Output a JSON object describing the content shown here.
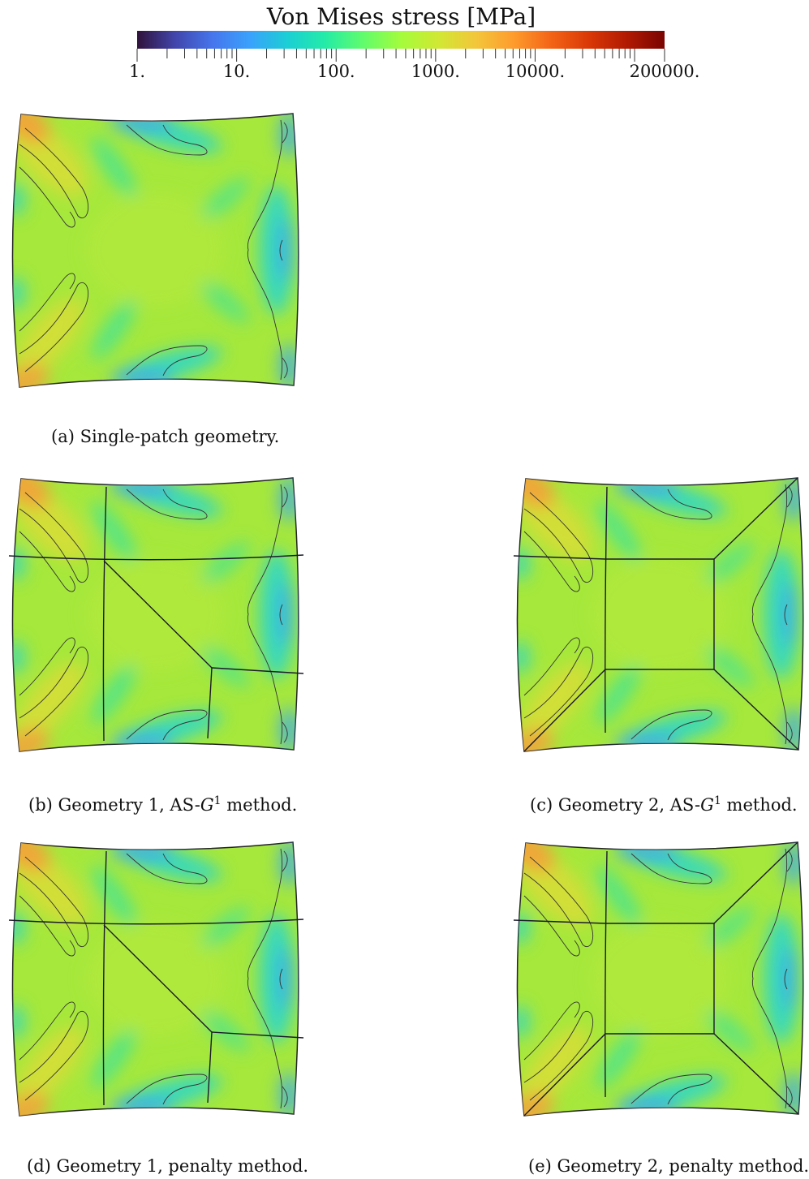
{
  "colorbar": {
    "title": "Von Mises stress [MPa]",
    "scale": "log",
    "min": 1,
    "max": 200000,
    "tick_labels": [
      "1.",
      "10.",
      "100.",
      "1000.",
      "10000.",
      "200000."
    ],
    "tick_values": [
      1,
      10,
      100,
      1000,
      10000,
      200000
    ],
    "colormap": [
      "#30123b",
      "#4145ab",
      "#4675ed",
      "#39a2fc",
      "#1bcfd4",
      "#24eca6",
      "#61fc6c",
      "#a4fc3b",
      "#d1e834",
      "#f3c63a",
      "#fe9b2d",
      "#f36315",
      "#d93806",
      "#b11901",
      "#7a0402"
    ]
  },
  "panels": [
    {
      "id": "a",
      "caption_prefix": "(a) Single-patch geometry.",
      "caption_sup": "",
      "caption_suffix": "",
      "partition": "none"
    },
    {
      "id": "b",
      "caption_prefix": "(b) Geometry 1, AS-",
      "caption_sup": "1",
      "caption_suffix": " method.",
      "partition": "geometry-1"
    },
    {
      "id": "c",
      "caption_prefix": "(c) Geometry 2, AS-",
      "caption_sup": "1",
      "caption_suffix": " method.",
      "partition": "geometry-2"
    },
    {
      "id": "d",
      "caption_prefix": "(d) Geometry 1, penalty method.",
      "caption_sup": "",
      "caption_suffix": "",
      "partition": "geometry-1"
    },
    {
      "id": "e",
      "caption_prefix": "(e) Geometry 2, penalty method.",
      "caption_sup": "",
      "caption_suffix": "",
      "partition": "geometry-2"
    }
  ],
  "caption_italic_symbol": "G"
}
